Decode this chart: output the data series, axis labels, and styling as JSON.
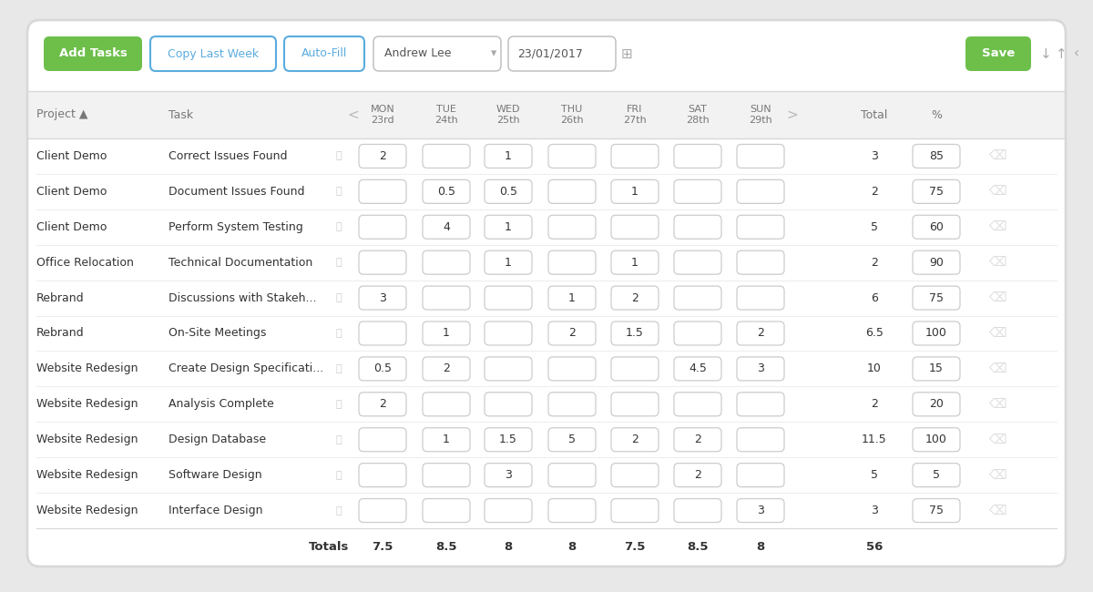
{
  "toolbar": {
    "add_tasks": "Add Tasks",
    "copy_last_week": "Copy Last Week",
    "auto_fill": "Auto-Fill",
    "person": "Andrew Lee",
    "date": "23/01/2017",
    "save": "Save"
  },
  "rows": [
    {
      "project": "Client Demo",
      "task": "Correct Issues Found",
      "mon": 2,
      "tue": null,
      "wed": 1,
      "thu": null,
      "fri": null,
      "sat": null,
      "sun": null,
      "total": 3,
      "pct": 85
    },
    {
      "project": "Client Demo",
      "task": "Document Issues Found",
      "mon": null,
      "tue": 0.5,
      "wed": 0.5,
      "thu": null,
      "fri": 1,
      "sat": null,
      "sun": null,
      "total": 2,
      "pct": 75
    },
    {
      "project": "Client Demo",
      "task": "Perform System Testing",
      "mon": null,
      "tue": 4,
      "wed": 1,
      "thu": null,
      "fri": null,
      "sat": null,
      "sun": null,
      "total": 5,
      "pct": 60
    },
    {
      "project": "Office Relocation",
      "task": "Technical Documentation",
      "mon": null,
      "tue": null,
      "wed": 1,
      "thu": null,
      "fri": 1,
      "sat": null,
      "sun": null,
      "total": 2,
      "pct": 90
    },
    {
      "project": "Rebrand",
      "task": "Discussions with Stakeh...",
      "mon": 3,
      "tue": null,
      "wed": null,
      "thu": 1,
      "fri": 2,
      "sat": null,
      "sun": null,
      "total": 6,
      "pct": 75
    },
    {
      "project": "Rebrand",
      "task": "On-Site Meetings",
      "mon": null,
      "tue": 1,
      "wed": null,
      "thu": 2,
      "fri": 1.5,
      "sat": null,
      "sun": 2,
      "total": 6.5,
      "pct": 100
    },
    {
      "project": "Website Redesign",
      "task": "Create Design Specificati...",
      "mon": 0.5,
      "tue": 2,
      "wed": null,
      "thu": null,
      "fri": null,
      "sat": 4.5,
      "sun": 3,
      "total": 10,
      "pct": 15
    },
    {
      "project": "Website Redesign",
      "task": "Analysis Complete",
      "mon": 2,
      "tue": null,
      "wed": null,
      "thu": null,
      "fri": null,
      "sat": null,
      "sun": null,
      "total": 2,
      "pct": 20
    },
    {
      "project": "Website Redesign",
      "task": "Design Database",
      "mon": null,
      "tue": 1,
      "wed": 1.5,
      "thu": 5,
      "fri": 2,
      "sat": 2,
      "sun": null,
      "total": 11.5,
      "pct": 100
    },
    {
      "project": "Website Redesign",
      "task": "Software Design",
      "mon": null,
      "tue": null,
      "wed": 3,
      "thu": null,
      "fri": null,
      "sat": 2,
      "sun": null,
      "total": 5,
      "pct": 5
    },
    {
      "project": "Website Redesign",
      "task": "Interface Design",
      "mon": null,
      "tue": null,
      "wed": null,
      "thu": null,
      "fri": null,
      "sat": null,
      "sun": 3,
      "total": 3,
      "pct": 75
    }
  ],
  "totals": {
    "mon": 7.5,
    "tue": 8.5,
    "wed": 8,
    "thu": 8,
    "fri": 7.5,
    "sat": 8.5,
    "sun": 8,
    "total": 56
  },
  "day_keys": [
    "mon",
    "tue",
    "wed",
    "thu",
    "fri",
    "sat",
    "sun"
  ],
  "day_labels": [
    "MON\n23rd",
    "TUE\n24th",
    "WED\n25th",
    "THU\n26th",
    "FRI\n27th",
    "SAT\n28th",
    "SUN\n29th"
  ],
  "colors": {
    "bg": "#e8e8e8",
    "card_bg": "#ffffff",
    "header_bg": "#f2f2f2",
    "toolbar_bg": "#ffffff",
    "green_btn": "#6dbf4a",
    "blue_text": "#5aacde",
    "border": "#d8d8d8",
    "text_dark": "#333333",
    "text_med": "#555555",
    "text_gray": "#999999",
    "input_border": "#cccccc",
    "row_sep": "#eeeeee",
    "trash": "#cccccc"
  }
}
